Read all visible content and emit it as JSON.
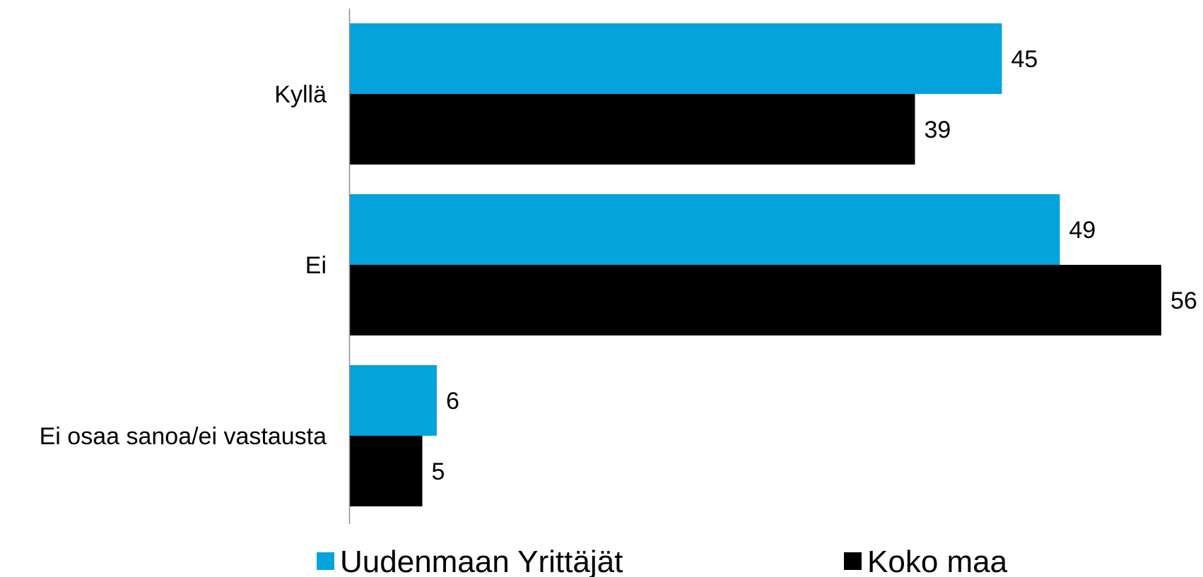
{
  "chart_data": {
    "type": "bar",
    "orientation": "horizontal",
    "categories": [
      "Kyllä",
      "Ei",
      "Ei osaa sanoa/ei vastausta"
    ],
    "series": [
      {
        "name": "Uudenmaan Yrittäjät",
        "values": [
          45,
          49,
          6
        ],
        "color": "#05A3DB"
      },
      {
        "name": "Koko maa",
        "values": [
          39,
          56,
          5
        ],
        "color": "#000000"
      }
    ],
    "xlim": [
      0,
      56
    ],
    "grid": false,
    "legend_position": "bottom"
  }
}
